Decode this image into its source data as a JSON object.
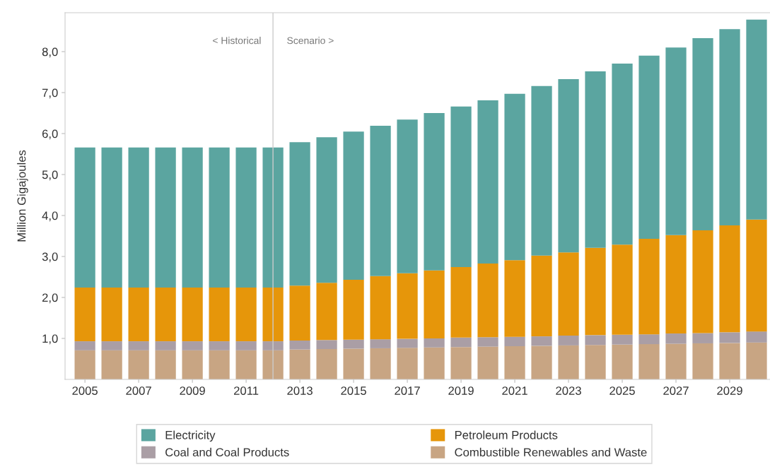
{
  "chart_data": {
    "type": "bar",
    "stacked": true,
    "ylabel": "Million Gigajoules",
    "x": [
      2005,
      2006,
      2007,
      2008,
      2009,
      2010,
      2011,
      2012,
      2013,
      2014,
      2015,
      2016,
      2017,
      2018,
      2019,
      2020,
      2021,
      2022,
      2023,
      2024,
      2025,
      2026,
      2027,
      2028,
      2029,
      2030
    ],
    "xlim": [
      2004.26,
      2030.5
    ],
    "xticks": [
      2005,
      2007,
      2009,
      2011,
      2013,
      2015,
      2017,
      2019,
      2021,
      2023,
      2025,
      2027,
      2029
    ],
    "ylim": [
      0,
      8.95
    ],
    "yticks": [
      {
        "value": 1,
        "label": "1,0"
      },
      {
        "value": 2,
        "label": "2,0"
      },
      {
        "value": 3,
        "label": "3,0"
      },
      {
        "value": 4,
        "label": "4,0"
      },
      {
        "value": 5,
        "label": "5,0"
      },
      {
        "value": 6,
        "label": "6,0"
      },
      {
        "value": 7,
        "label": "7,0"
      },
      {
        "value": 8,
        "label": "8,0"
      }
    ],
    "series": [
      {
        "name": "Combustible Renewables and Waste",
        "color": "#c8a583",
        "values": [
          0.71,
          0.71,
          0.71,
          0.71,
          0.71,
          0.71,
          0.71,
          0.71,
          0.73,
          0.74,
          0.75,
          0.76,
          0.77,
          0.78,
          0.79,
          0.8,
          0.81,
          0.82,
          0.83,
          0.84,
          0.85,
          0.86,
          0.87,
          0.88,
          0.89,
          0.9
        ]
      },
      {
        "name": "Coal and Coal Products",
        "color": "#aa9ea5",
        "values": [
          0.22,
          0.22,
          0.22,
          0.22,
          0.22,
          0.22,
          0.22,
          0.22,
          0.22,
          0.22,
          0.22,
          0.22,
          0.22,
          0.22,
          0.23,
          0.23,
          0.23,
          0.23,
          0.24,
          0.24,
          0.24,
          0.24,
          0.25,
          0.25,
          0.26,
          0.27
        ]
      },
      {
        "name": "Petroleum Products",
        "color": "#e6960a",
        "values": [
          1.31,
          1.31,
          1.31,
          1.31,
          1.31,
          1.31,
          1.31,
          1.31,
          1.34,
          1.4,
          1.46,
          1.54,
          1.6,
          1.66,
          1.72,
          1.8,
          1.87,
          1.97,
          2.03,
          2.13,
          2.2,
          2.33,
          2.4,
          2.51,
          2.61,
          2.73
        ]
      },
      {
        "name": "Electricity",
        "color": "#5ba5a0",
        "values": [
          3.42,
          3.42,
          3.42,
          3.42,
          3.42,
          3.42,
          3.42,
          3.42,
          3.5,
          3.55,
          3.62,
          3.67,
          3.75,
          3.84,
          3.92,
          3.98,
          4.06,
          4.14,
          4.23,
          4.31,
          4.42,
          4.47,
          4.58,
          4.69,
          4.79,
          4.88
        ]
      }
    ],
    "ref_lines": [
      {
        "axis": "x",
        "value": 2012,
        "color": "#cccccc"
      }
    ],
    "annotations": [
      {
        "text": "< Historical",
        "x": 2012,
        "y": 8.25
      },
      {
        "text": "Scenario >",
        "x": 2012,
        "y": 8.25
      }
    ],
    "legend": "bottom",
    "grid": false
  }
}
